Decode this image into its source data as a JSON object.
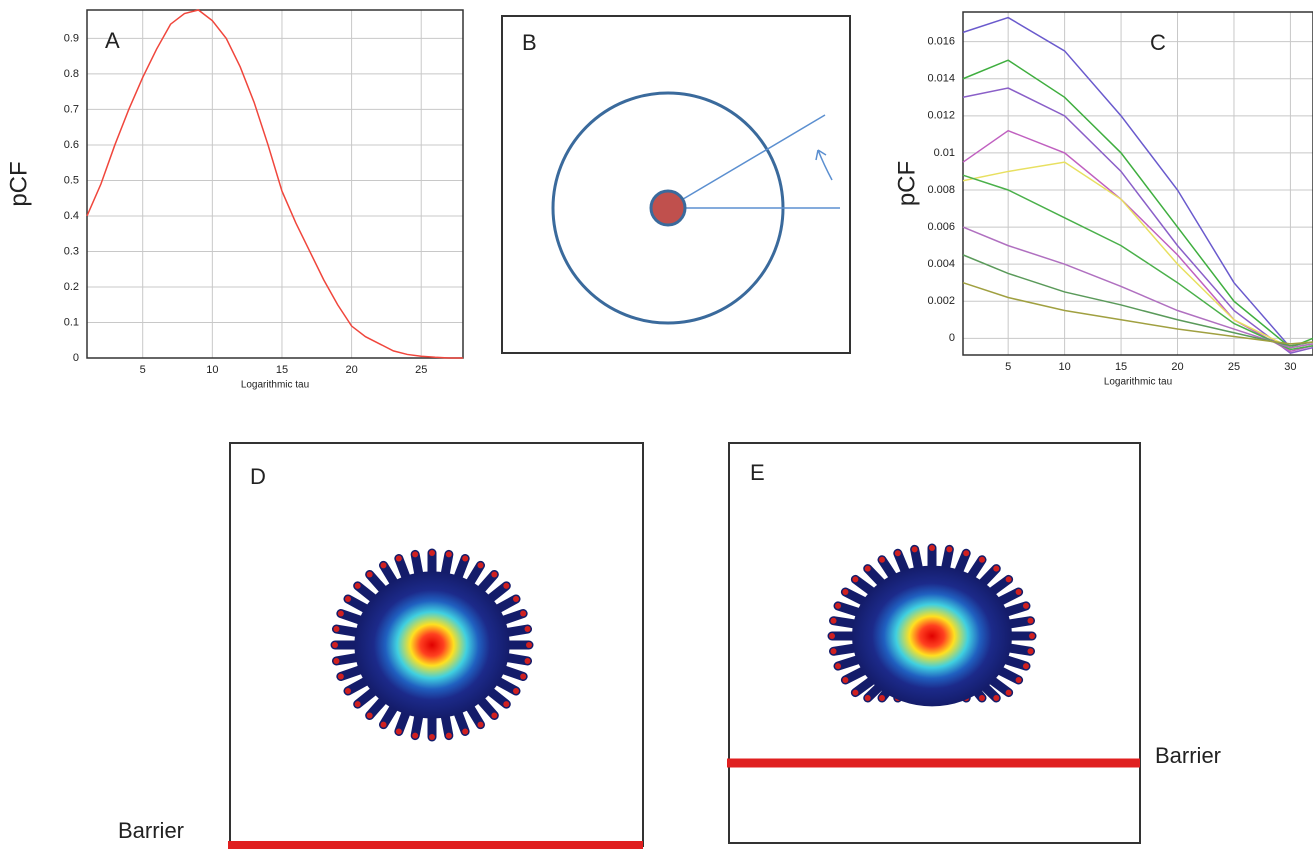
{
  "chart_data": [
    {
      "type": "line",
      "panel_label": "A",
      "ylabel": "pCF",
      "xlabel": "Logarithmic tau",
      "color": "#f0463c",
      "grid": true,
      "x": [
        1,
        2,
        3,
        4,
        5,
        6,
        7,
        8,
        9,
        10,
        11,
        12,
        13,
        14,
        15,
        16,
        17,
        18,
        19,
        20,
        21,
        22,
        23,
        24,
        25,
        26,
        27,
        28
      ],
      "values": [
        0.4,
        0.49,
        0.6,
        0.7,
        0.79,
        0.87,
        0.94,
        0.97,
        0.98,
        0.95,
        0.9,
        0.82,
        0.72,
        0.6,
        0.47,
        0.38,
        0.3,
        0.22,
        0.15,
        0.09,
        0.06,
        0.04,
        0.02,
        0.01,
        0.005,
        0.002,
        0,
        0
      ],
      "xlim": [
        1,
        28
      ],
      "xticks": [
        5,
        10,
        15,
        20,
        25
      ],
      "ylim": [
        0,
        0.98
      ],
      "yticks": [
        0,
        0.1,
        0.2,
        0.3,
        0.4,
        0.5,
        0.6,
        0.7,
        0.8,
        0.9
      ]
    },
    {
      "type": "line",
      "panel_label": "C",
      "ylabel": "pCF",
      "xlabel": "Logarithmic tau",
      "grid": true,
      "x": [
        1,
        5,
        10,
        15,
        20,
        25,
        30,
        32
      ],
      "series": [
        {
          "color": "#6a5acd",
          "values": [
            0.0165,
            0.0173,
            0.0155,
            0.012,
            0.008,
            0.003,
            -0.0005,
            -0.0003
          ]
        },
        {
          "color": "#3fae3f",
          "values": [
            0.014,
            0.015,
            0.013,
            0.01,
            0.006,
            0.002,
            -0.0005,
            0
          ]
        },
        {
          "color": "#8a5fc8",
          "values": [
            0.013,
            0.0135,
            0.012,
            0.009,
            0.005,
            0.0015,
            -0.0008,
            -0.0005
          ]
        },
        {
          "color": "#c060c0",
          "values": [
            0.0095,
            0.0112,
            0.01,
            0.0075,
            0.0045,
            0.001,
            -0.0007,
            -0.0004
          ]
        },
        {
          "color": "#e8e060",
          "values": [
            0.0085,
            0.009,
            0.0095,
            0.0075,
            0.004,
            0.001,
            -0.0005,
            -0.0003
          ]
        },
        {
          "color": "#4ab04a",
          "values": [
            0.0088,
            0.008,
            0.0065,
            0.005,
            0.003,
            0.0008,
            -0.0006,
            -0.0004
          ]
        },
        {
          "color": "#b070c0",
          "values": [
            0.006,
            0.005,
            0.004,
            0.0028,
            0.0015,
            0.0005,
            -0.0005,
            -0.0003
          ]
        },
        {
          "color": "#5a9a5a",
          "values": [
            0.0045,
            0.0035,
            0.0025,
            0.0018,
            0.001,
            0.0003,
            -0.0004,
            -0.0002
          ]
        },
        {
          "color": "#a0a040",
          "values": [
            0.003,
            0.0022,
            0.0015,
            0.001,
            0.0005,
            0.0001,
            -0.0003,
            -0.0002
          ]
        }
      ],
      "xlim": [
        1,
        32
      ],
      "xticks": [
        5,
        10,
        15,
        20,
        25,
        30
      ],
      "ylim": [
        -0.0009,
        0.0176
      ],
      "yticks": [
        0,
        0.002,
        0.004,
        0.006,
        0.008,
        0.01,
        0.012,
        0.014,
        0.016
      ]
    }
  ],
  "panels": {
    "B": {
      "label": "B"
    },
    "D": {
      "label": "D",
      "barrier": "Barrier"
    },
    "E": {
      "label": "E",
      "barrier": "Barrier"
    }
  }
}
